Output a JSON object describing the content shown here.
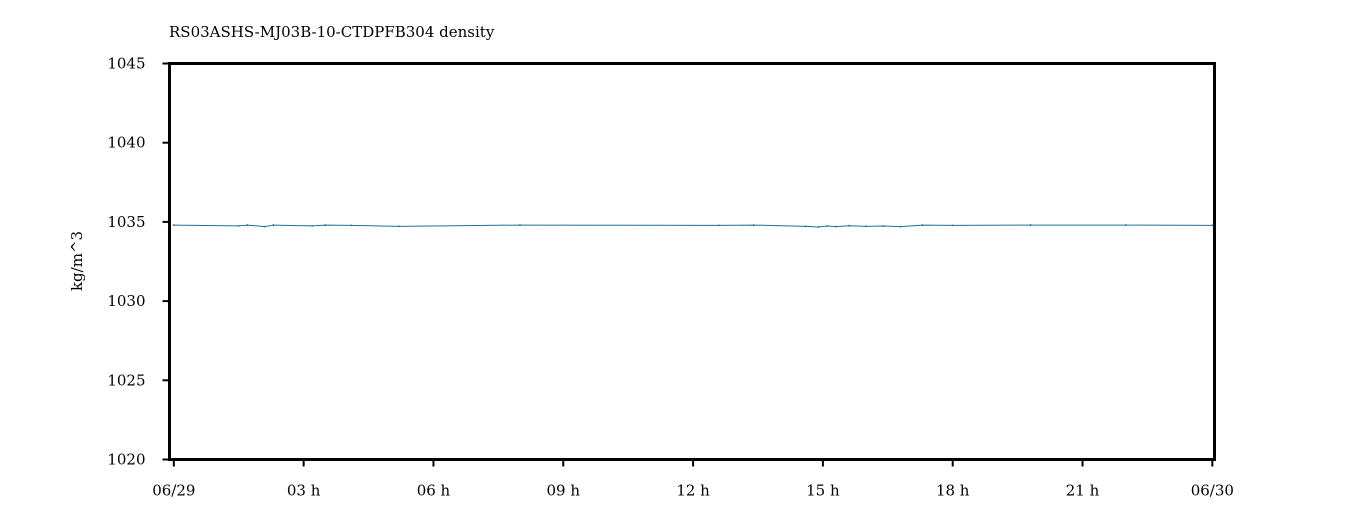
{
  "chart_data": {
    "type": "line",
    "title": "RS03ASHS-MJ03B-10-CTDPFB304 density",
    "xlabel": "",
    "ylabel": "kg/m^3",
    "ylim": [
      1020,
      1045
    ],
    "yticks": [
      1020,
      1025,
      1030,
      1035,
      1040,
      1045
    ],
    "xlim_hours": [
      -0.1,
      24.05
    ],
    "xticks": [
      {
        "hour": 0,
        "label": "06/29"
      },
      {
        "hour": 3,
        "label": "03 h"
      },
      {
        "hour": 6,
        "label": "06 h"
      },
      {
        "hour": 9,
        "label": "09 h"
      },
      {
        "hour": 12,
        "label": "12 h"
      },
      {
        "hour": 15,
        "label": "15 h"
      },
      {
        "hour": 18,
        "label": "18 h"
      },
      {
        "hour": 21,
        "label": "21 h"
      },
      {
        "hour": 24,
        "label": "06/30"
      }
    ],
    "grid": false,
    "series": [
      {
        "name": "",
        "color": "#1f6f9a",
        "x_hours": [
          0.0,
          1.5,
          1.7,
          2.1,
          2.3,
          3.2,
          3.5,
          4.1,
          5.2,
          8.0,
          12.6,
          13.4,
          14.6,
          14.9,
          15.1,
          15.3,
          15.6,
          16.0,
          16.4,
          16.8,
          17.3,
          18.0,
          19.8,
          22.0,
          24.0
        ],
        "values": [
          1034.8,
          1034.75,
          1034.8,
          1034.7,
          1034.8,
          1034.75,
          1034.8,
          1034.78,
          1034.72,
          1034.8,
          1034.78,
          1034.8,
          1034.72,
          1034.68,
          1034.74,
          1034.7,
          1034.76,
          1034.72,
          1034.74,
          1034.7,
          1034.8,
          1034.78,
          1034.8,
          1034.8,
          1034.78
        ]
      }
    ]
  }
}
